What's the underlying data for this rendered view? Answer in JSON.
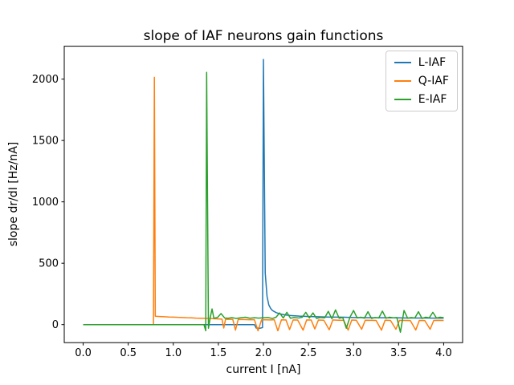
{
  "figure": {
    "background": "#ffffff",
    "text_color": "#000000",
    "legend_border_color": "#cccccc"
  },
  "chart_data": {
    "type": "line",
    "title": "slope of IAF neurons gain functions",
    "xlabel": "current I [nA]",
    "ylabel": "slope dr/dI [Hz/nA]",
    "xlim": [
      -0.21,
      4.21
    ],
    "ylim": [
      -147,
      2268
    ],
    "xticks": [
      0.0,
      0.5,
      1.0,
      1.5,
      2.0,
      2.5,
      3.0,
      3.5,
      4.0
    ],
    "xtick_labels": [
      "0.0",
      "0.5",
      "1.0",
      "1.5",
      "2.0",
      "2.5",
      "3.0",
      "3.5",
      "4.0"
    ],
    "yticks": [
      0,
      500,
      1000,
      1500,
      2000
    ],
    "ytick_labels": [
      "0",
      "500",
      "1000",
      "1500",
      "2000"
    ],
    "grid": false,
    "legend_position": "upper right",
    "series": [
      {
        "name": "L-IAF",
        "color": "#1f77b4",
        "rheobase_spike": {
          "x": 2.0,
          "peak": 2160
        },
        "points": [
          [
            0,
            0
          ],
          [
            0.3,
            0
          ],
          [
            0.6,
            0
          ],
          [
            0.9,
            0
          ],
          [
            1.2,
            0
          ],
          [
            1.5,
            0
          ],
          [
            1.8,
            0
          ],
          [
            1.9,
            0
          ],
          [
            1.92,
            -28
          ],
          [
            1.96,
            -30
          ],
          [
            1.99,
            -24
          ],
          [
            2.0,
            2160
          ],
          [
            2.02,
            420
          ],
          [
            2.04,
            230
          ],
          [
            2.06,
            160
          ],
          [
            2.08,
            132
          ],
          [
            2.1,
            115
          ],
          [
            2.14,
            98
          ],
          [
            2.18,
            88
          ],
          [
            2.24,
            79
          ],
          [
            2.3,
            74
          ],
          [
            2.4,
            69
          ],
          [
            2.5,
            66
          ],
          [
            2.6,
            64
          ],
          [
            2.7,
            62
          ],
          [
            2.8,
            61
          ],
          [
            2.9,
            60
          ],
          [
            3.0,
            58
          ],
          [
            3.1,
            57
          ],
          [
            3.2,
            56
          ],
          [
            3.3,
            56
          ],
          [
            3.4,
            55
          ],
          [
            3.5,
            55
          ],
          [
            3.6,
            54
          ],
          [
            3.7,
            54
          ],
          [
            3.8,
            54
          ],
          [
            3.9,
            53
          ],
          [
            4.0,
            53
          ]
        ]
      },
      {
        "name": "Q-IAF",
        "color": "#ff7f0e",
        "rheobase_spike": {
          "x": 0.79,
          "peak": 2015
        },
        "points": [
          [
            0,
            0
          ],
          [
            0.2,
            0
          ],
          [
            0.4,
            0
          ],
          [
            0.6,
            0
          ],
          [
            0.74,
            0
          ],
          [
            0.78,
            0
          ],
          [
            0.79,
            2015
          ],
          [
            0.8,
            68
          ],
          [
            0.85,
            66
          ],
          [
            0.9,
            64
          ],
          [
            0.95,
            62
          ],
          [
            1.0,
            61
          ],
          [
            1.05,
            59
          ],
          [
            1.1,
            58
          ],
          [
            1.15,
            56
          ],
          [
            1.2,
            55
          ],
          [
            1.25,
            53
          ],
          [
            1.3,
            52
          ],
          [
            1.35,
            51
          ],
          [
            1.4,
            50
          ],
          [
            1.45,
            48
          ],
          [
            1.5,
            46
          ],
          [
            1.54,
            45
          ],
          [
            1.56,
            -28
          ],
          [
            1.58,
            44
          ],
          [
            1.62,
            43
          ],
          [
            1.66,
            42
          ],
          [
            1.69,
            -45
          ],
          [
            1.72,
            42
          ],
          [
            1.78,
            41
          ],
          [
            1.84,
            40
          ],
          [
            1.9,
            40
          ],
          [
            1.94,
            -50
          ],
          [
            1.98,
            40
          ],
          [
            2.03,
            39
          ],
          [
            2.08,
            38
          ],
          [
            2.12,
            40
          ],
          [
            2.16,
            -50
          ],
          [
            2.2,
            39
          ],
          [
            2.25,
            38
          ],
          [
            2.29,
            -40
          ],
          [
            2.33,
            38
          ],
          [
            2.38,
            37
          ],
          [
            2.44,
            -45
          ],
          [
            2.48,
            38
          ],
          [
            2.53,
            37
          ],
          [
            2.57,
            -35
          ],
          [
            2.61,
            37
          ],
          [
            2.67,
            36
          ],
          [
            2.73,
            -42
          ],
          [
            2.77,
            38
          ],
          [
            2.83,
            36
          ],
          [
            2.89,
            35
          ],
          [
            2.94,
            -45
          ],
          [
            2.98,
            37
          ],
          [
            3.03,
            36
          ],
          [
            3.09,
            -38
          ],
          [
            3.13,
            36
          ],
          [
            3.19,
            35
          ],
          [
            3.25,
            34
          ],
          [
            3.31,
            -45
          ],
          [
            3.35,
            36
          ],
          [
            3.41,
            34
          ],
          [
            3.47,
            -38
          ],
          [
            3.51,
            35
          ],
          [
            3.57,
            34
          ],
          [
            3.63,
            33
          ],
          [
            3.69,
            -44
          ],
          [
            3.73,
            34
          ],
          [
            3.79,
            33
          ],
          [
            3.85,
            -38
          ],
          [
            3.89,
            34
          ],
          [
            3.94,
            35
          ],
          [
            4.0,
            34
          ]
        ]
      },
      {
        "name": "E-IAF",
        "color": "#2ca02c",
        "rheobase_spike": {
          "x": 1.37,
          "peak": 2055
        },
        "points": [
          [
            0,
            0
          ],
          [
            0.25,
            0
          ],
          [
            0.5,
            0
          ],
          [
            0.75,
            0
          ],
          [
            1.0,
            0
          ],
          [
            1.2,
            0
          ],
          [
            1.3,
            0
          ],
          [
            1.34,
            0
          ],
          [
            1.36,
            -50
          ],
          [
            1.37,
            2055
          ],
          [
            1.39,
            -30
          ],
          [
            1.41,
            58
          ],
          [
            1.43,
            128
          ],
          [
            1.45,
            52
          ],
          [
            1.49,
            58
          ],
          [
            1.53,
            90
          ],
          [
            1.57,
            54
          ],
          [
            1.61,
            52
          ],
          [
            1.65,
            57
          ],
          [
            1.7,
            50
          ],
          [
            1.75,
            56
          ],
          [
            1.8,
            60
          ],
          [
            1.85,
            52
          ],
          [
            1.9,
            56
          ],
          [
            1.95,
            53
          ],
          [
            2.0,
            56
          ],
          [
            2.05,
            58
          ],
          [
            2.1,
            50
          ],
          [
            2.14,
            60
          ],
          [
            2.18,
            95
          ],
          [
            2.22,
            54
          ],
          [
            2.26,
            100
          ],
          [
            2.3,
            52
          ],
          [
            2.34,
            58
          ],
          [
            2.39,
            54
          ],
          [
            2.43,
            60
          ],
          [
            2.47,
            100
          ],
          [
            2.51,
            54
          ],
          [
            2.55,
            95
          ],
          [
            2.59,
            50
          ],
          [
            2.63,
            58
          ],
          [
            2.68,
            55
          ],
          [
            2.72,
            108
          ],
          [
            2.76,
            48
          ],
          [
            2.8,
            120
          ],
          [
            2.84,
            52
          ],
          [
            2.88,
            58
          ],
          [
            2.92,
            -30
          ],
          [
            2.96,
            60
          ],
          [
            3.0,
            115
          ],
          [
            3.04,
            54
          ],
          [
            3.08,
            60
          ],
          [
            3.12,
            52
          ],
          [
            3.16,
            105
          ],
          [
            3.2,
            50
          ],
          [
            3.24,
            58
          ],
          [
            3.28,
            54
          ],
          [
            3.32,
            110
          ],
          [
            3.36,
            52
          ],
          [
            3.4,
            60
          ],
          [
            3.44,
            55
          ],
          [
            3.48,
            58
          ],
          [
            3.52,
            -62
          ],
          [
            3.56,
            115
          ],
          [
            3.6,
            52
          ],
          [
            3.64,
            58
          ],
          [
            3.68,
            54
          ],
          [
            3.72,
            105
          ],
          [
            3.76,
            50
          ],
          [
            3.8,
            60
          ],
          [
            3.84,
            55
          ],
          [
            3.88,
            100
          ],
          [
            3.92,
            54
          ],
          [
            3.96,
            60
          ],
          [
            4.0,
            57
          ]
        ]
      }
    ]
  }
}
